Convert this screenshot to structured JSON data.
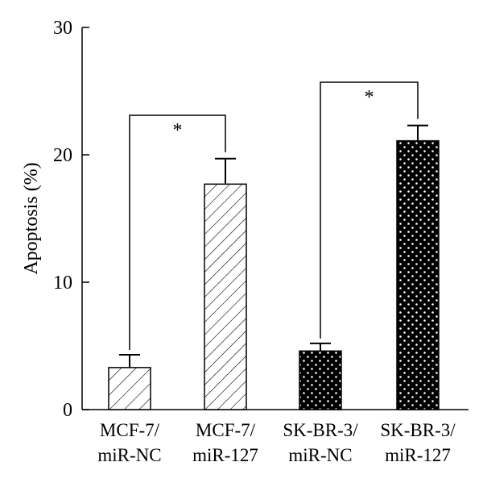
{
  "chart_data": {
    "type": "bar",
    "title": "",
    "xlabel": "",
    "ylabel": "Apoptosis (%)",
    "ylim": [
      0,
      30
    ],
    "yticks": [
      "0",
      "10",
      "20",
      "30"
    ],
    "categories": [
      {
        "line1": "MCF-7/",
        "line2": "miR-NC",
        "value": 3.3,
        "error": 1.0,
        "pattern": "hatch-sparse"
      },
      {
        "line1": "MCF-7/",
        "line2": "miR-127",
        "value": 17.7,
        "error": 2.0,
        "pattern": "hatch-dense"
      },
      {
        "line1": "SK-BR-3/",
        "line2": "miR-NC",
        "value": 4.6,
        "error": 0.6,
        "pattern": "dots-sparse"
      },
      {
        "line1": "SK-BR-3/",
        "line2": "miR-127",
        "value": 21.1,
        "error": 1.2,
        "pattern": "dots-dense"
      }
    ],
    "significance": [
      {
        "from": 0,
        "to": 1,
        "label": "*"
      },
      {
        "from": 2,
        "to": 3,
        "label": "*"
      }
    ],
    "grid": false,
    "legend": "none"
  }
}
